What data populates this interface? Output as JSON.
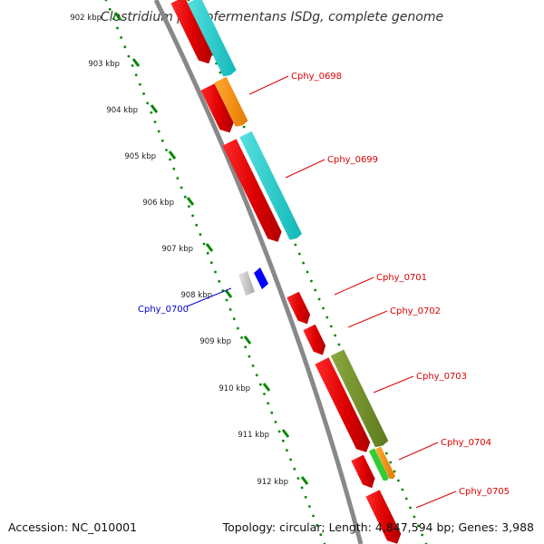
{
  "title": "Clostridium phytofermentans ISDg, complete genome",
  "ticks": [
    "902 kbp",
    "903 kbp",
    "904 kbp",
    "905 kbp",
    "906 kbp",
    "907 kbp",
    "908 kbp",
    "909 kbp",
    "910 kbp",
    "911 kbp",
    "912 kbp"
  ],
  "gene_labels": [
    {
      "id": "Cphy_0698",
      "strand": "forward"
    },
    {
      "id": "Cphy_0699",
      "strand": "forward"
    },
    {
      "id": "Cphy_0700",
      "strand": "reverse"
    },
    {
      "id": "Cphy_0701",
      "strand": "forward"
    },
    {
      "id": "Cphy_0702",
      "strand": "forward"
    },
    {
      "id": "Cphy_0703",
      "strand": "forward"
    },
    {
      "id": "Cphy_0704",
      "strand": "forward"
    },
    {
      "id": "Cphy_0705",
      "strand": "forward"
    }
  ],
  "footer": {
    "accession": "Accession: NC_010001",
    "stats": "Topology: circular; Length: 4,847,594 bp; Genes: 3,988"
  },
  "colors": {
    "backbone": "#888888",
    "forward_gene": "#ff0000",
    "forward_label": "#dd0000",
    "reverse_label": "#0000cc",
    "reverse_gene": "#0000ff",
    "tick": "#008800",
    "cyan": "#22cccc",
    "orange": "#ff8800",
    "olive": "#6f8f2a",
    "lime": "#33cc33",
    "grey": "#c8c8c8"
  }
}
